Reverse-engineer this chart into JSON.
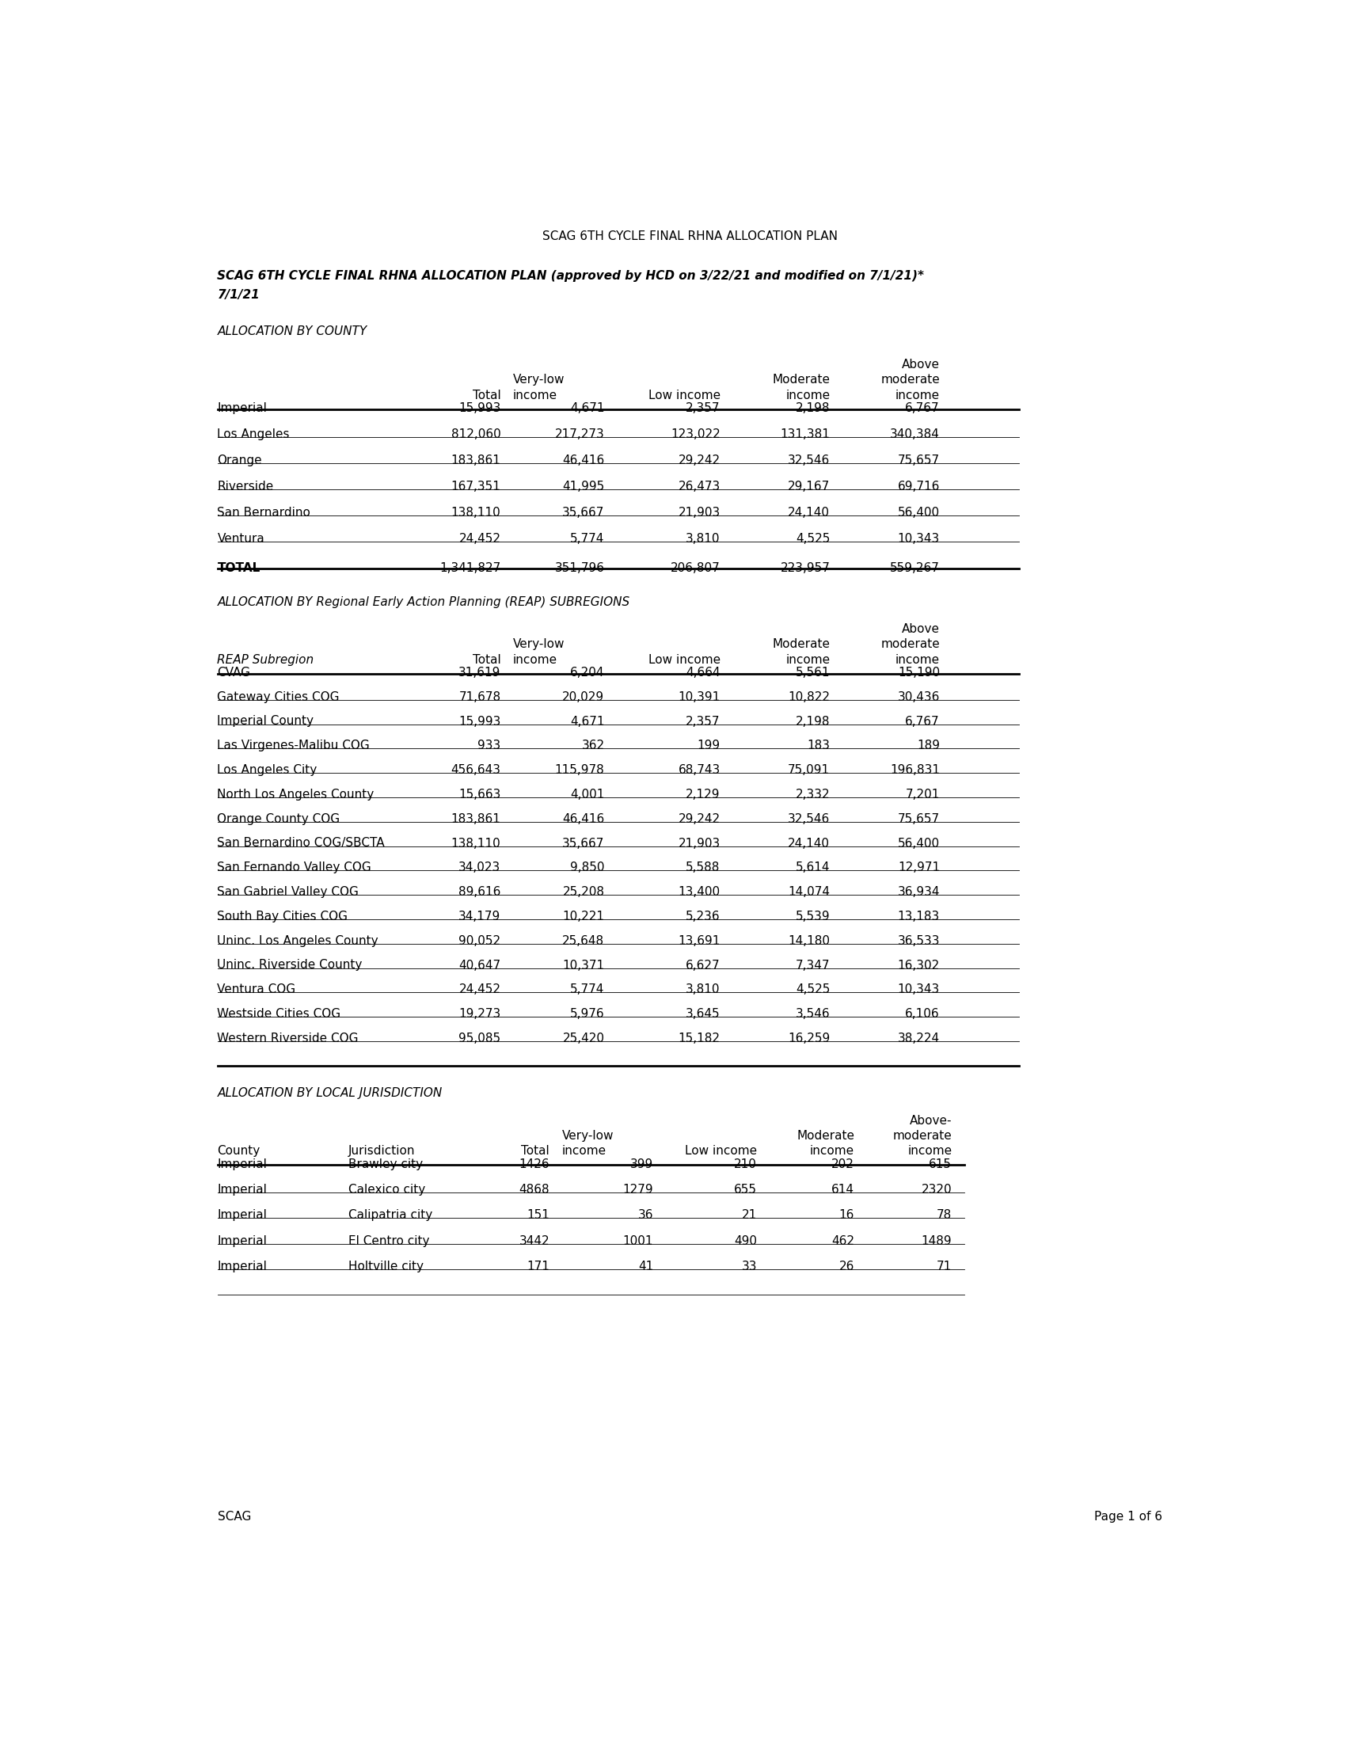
{
  "page_title": "SCAG 6TH CYCLE FINAL RHNA ALLOCATION PLAN",
  "subtitle_line1": "SCAG 6TH CYCLE FINAL RHNA ALLOCATION PLAN (approved by HCD on 3/22/21 and modified on 7/1/21)*",
  "subtitle_line2": "7/1/21",
  "section1_title": "ALLOCATION BY COUNTY",
  "section1_rows": [
    [
      "Imperial",
      "15,993",
      "4,671",
      "2,357",
      "2,198",
      "6,767"
    ],
    [
      "Los Angeles",
      "812,060",
      "217,273",
      "123,022",
      "131,381",
      "340,384"
    ],
    [
      "Orange",
      "183,861",
      "46,416",
      "29,242",
      "32,546",
      "75,657"
    ],
    [
      "Riverside",
      "167,351",
      "41,995",
      "26,473",
      "29,167",
      "69,716"
    ],
    [
      "San Bernardino",
      "138,110",
      "35,667",
      "21,903",
      "24,140",
      "56,400"
    ],
    [
      "Ventura",
      "24,452",
      "5,774",
      "3,810",
      "4,525",
      "10,343"
    ]
  ],
  "section1_total": [
    "TOTAL",
    "1,341,827",
    "351,796",
    "206,807",
    "223,957",
    "559,267"
  ],
  "section2_title": "ALLOCATION BY Regional Early Action Planning (REAP) SUBREGIONS",
  "section2_rows": [
    [
      "CVAG",
      "31,619",
      "6,204",
      "4,664",
      "5,561",
      "15,190"
    ],
    [
      "Gateway Cities COG",
      "71,678",
      "20,029",
      "10,391",
      "10,822",
      "30,436"
    ],
    [
      "Imperial County",
      "15,993",
      "4,671",
      "2,357",
      "2,198",
      "6,767"
    ],
    [
      "Las Virgenes-Malibu COG",
      "933",
      "362",
      "199",
      "183",
      "189"
    ],
    [
      "Los Angeles City",
      "456,643",
      "115,978",
      "68,743",
      "75,091",
      "196,831"
    ],
    [
      "North Los Angeles County",
      "15,663",
      "4,001",
      "2,129",
      "2,332",
      "7,201"
    ],
    [
      "Orange County COG",
      "183,861",
      "46,416",
      "29,242",
      "32,546",
      "75,657"
    ],
    [
      "San Bernardino COG/SBCTA",
      "138,110",
      "35,667",
      "21,903",
      "24,140",
      "56,400"
    ],
    [
      "San Fernando Valley COG",
      "34,023",
      "9,850",
      "5,588",
      "5,614",
      "12,971"
    ],
    [
      "San Gabriel Valley COG",
      "89,616",
      "25,208",
      "13,400",
      "14,074",
      "36,934"
    ],
    [
      "South Bay Cities COG",
      "34,179",
      "10,221",
      "5,236",
      "5,539",
      "13,183"
    ],
    [
      "Uninc. Los Angeles County",
      "90,052",
      "25,648",
      "13,691",
      "14,180",
      "36,533"
    ],
    [
      "Uninc. Riverside County",
      "40,647",
      "10,371",
      "6,627",
      "7,347",
      "16,302"
    ],
    [
      "Ventura COG",
      "24,452",
      "5,774",
      "3,810",
      "4,525",
      "10,343"
    ],
    [
      "Westside Cities COG",
      "19,273",
      "5,976",
      "3,645",
      "3,546",
      "6,106"
    ],
    [
      "Western Riverside COG",
      "95,085",
      "25,420",
      "15,182",
      "16,259",
      "38,224"
    ]
  ],
  "section3_title": "ALLOCATION BY LOCAL JURISDICTION",
  "section3_rows": [
    [
      "Imperial",
      "Brawley city",
      "1426",
      "399",
      "210",
      "202",
      "615"
    ],
    [
      "Imperial",
      "Calexico city",
      "4868",
      "1279",
      "655",
      "614",
      "2320"
    ],
    [
      "Imperial",
      "Calipatria city",
      "151",
      "36",
      "21",
      "16",
      "78"
    ],
    [
      "Imperial",
      "El Centro city",
      "3442",
      "1001",
      "490",
      "462",
      "1489"
    ],
    [
      "Imperial",
      "Holtville city",
      "171",
      "41",
      "33",
      "26",
      "71"
    ]
  ],
  "footer_left": "SCAG",
  "footer_right": "Page 1 of 6",
  "bg_color": "#ffffff",
  "text_color": "#000000"
}
